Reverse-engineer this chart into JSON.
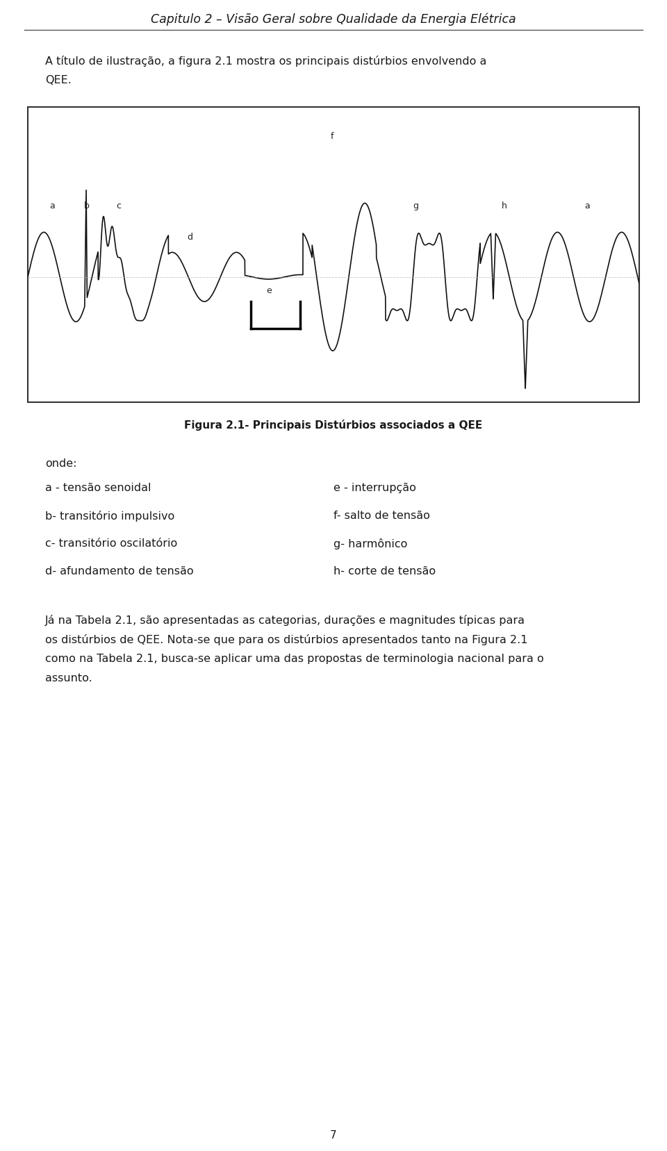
{
  "page_title": "Capitulo 2 – Visão Geral sobre Qualidade da Energia Elétrica",
  "figure_caption": "Figura 2.1- Principais Distúrbios associados a QEE",
  "onde_label": "onde:",
  "left_items": [
    "a - tensão senoidal",
    "b- transitório impulsivo",
    "c- transitório oscilatório",
    "d- afundamento de tensão"
  ],
  "right_items": [
    "e - interrupção",
    "f- salto de tensão",
    "g- harmônico",
    "h- corte de tensão"
  ],
  "page_number": "7",
  "bg_color": "#ffffff",
  "text_color": "#1a1a1a",
  "wave_color": "#111111",
  "box_bg": "#ffffff"
}
